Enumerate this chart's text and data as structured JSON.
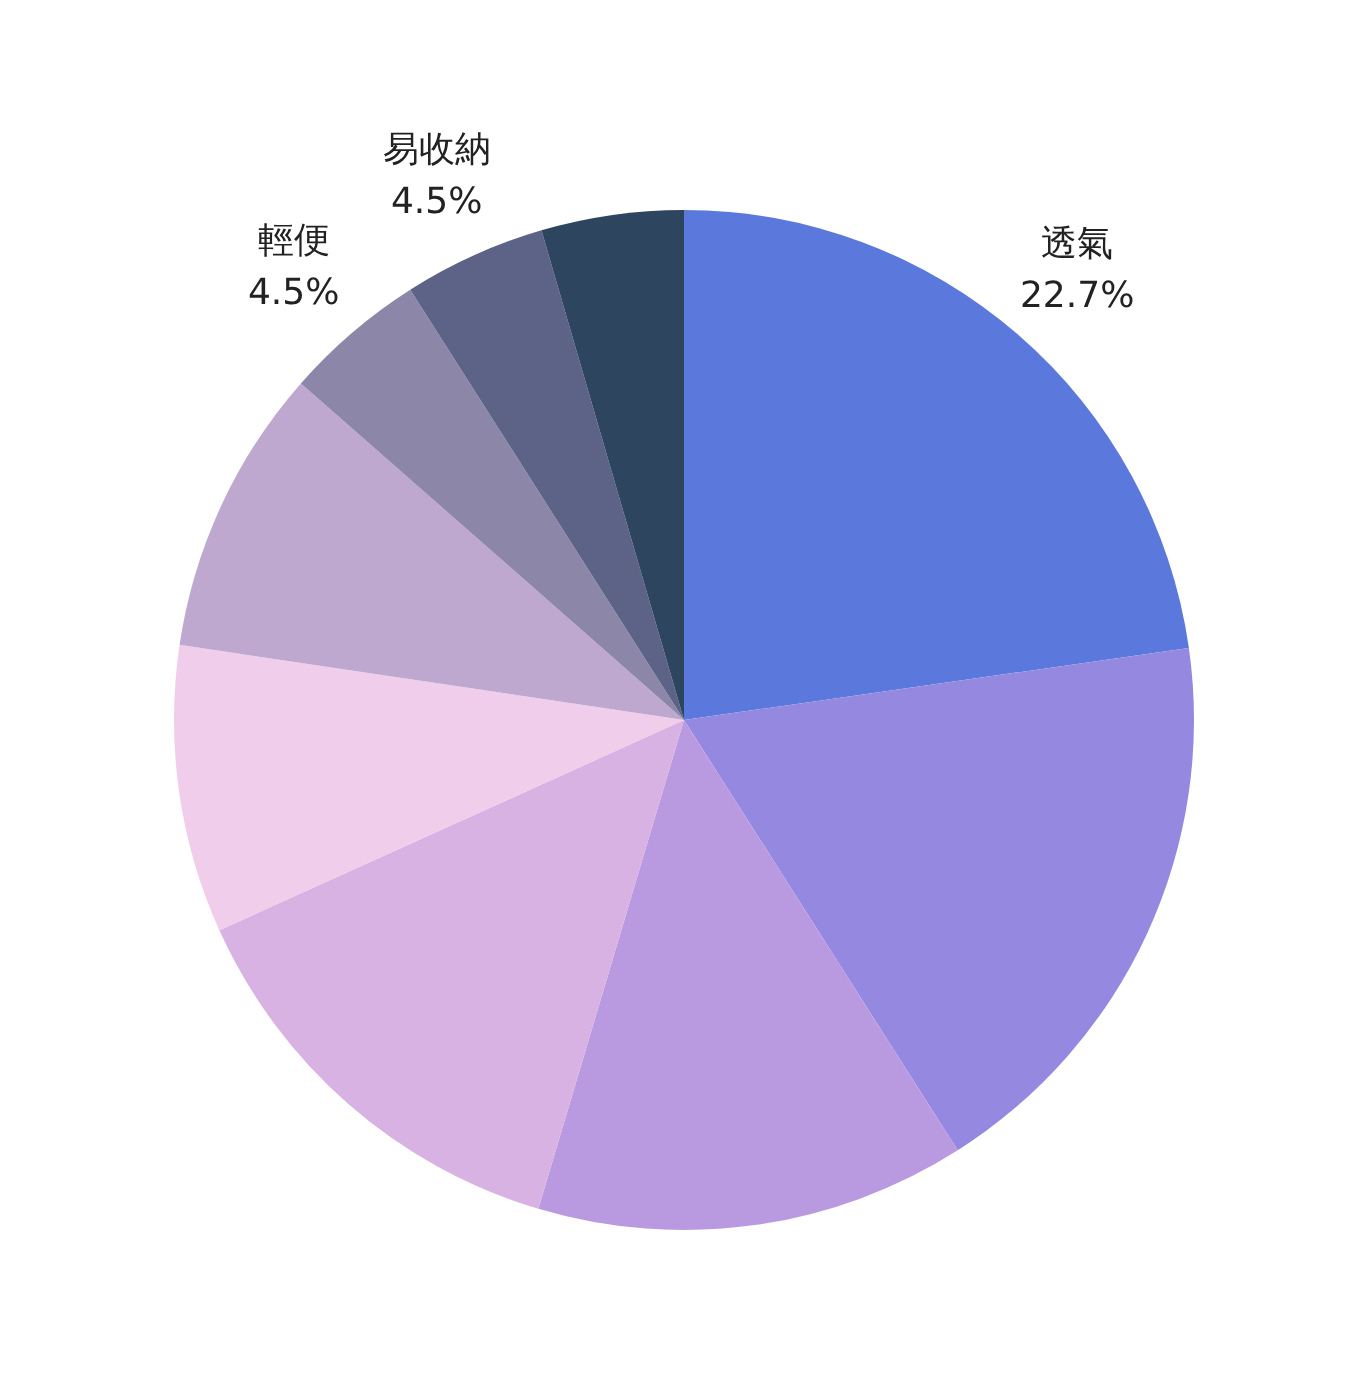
{
  "chart_data": {
    "type": "pie",
    "categories": [
      "透氣",
      null,
      null,
      null,
      null,
      null,
      "輕便",
      "易收納",
      null
    ],
    "values": [
      22.7,
      18.2,
      13.6,
      13.6,
      9.1,
      9.1,
      4.5,
      4.5,
      4.5
    ],
    "colors": [
      "#5b78dc",
      "#9488e0",
      "#b99ae0",
      "#d8b2e2",
      "#f0cdea",
      "#bfa8cf",
      "#8c86a8",
      "#5c6386",
      "#2e4560"
    ],
    "value_labels": [
      "22.7%",
      null,
      null,
      null,
      null,
      null,
      "4.5%",
      "4.5%",
      null
    ]
  }
}
